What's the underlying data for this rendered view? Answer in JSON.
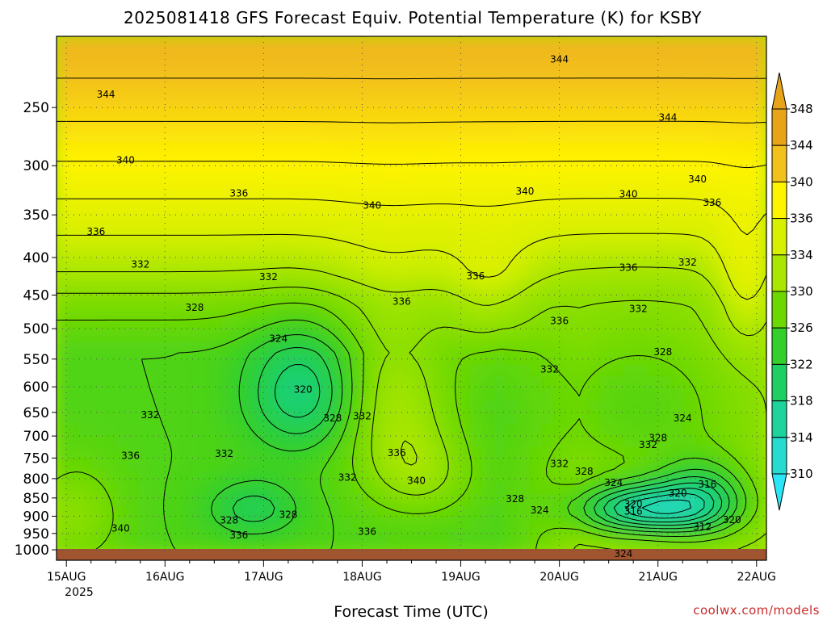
{
  "chart_data": {
    "type": "heatmap",
    "subtype": "time-height filled contour",
    "title": "2025081418 GFS Forecast Equiv. Potential Temperature (K) for KSBY",
    "xlabel": "Forecast Time (UTC)",
    "ylabel": "",
    "x_ticks": [
      "15AUG",
      "16AUG",
      "17AUG",
      "18AUG",
      "19AUG",
      "20AUG",
      "21AUG",
      "22AUG"
    ],
    "x_year_label": "2025",
    "y_ticks": [
      250,
      300,
      350,
      400,
      450,
      500,
      550,
      600,
      650,
      700,
      750,
      800,
      850,
      900,
      950,
      1000
    ],
    "y_axis": "pressure (hPa), inverted",
    "y_range": [
      1010,
      200
    ],
    "x_range_days": [
      -0.1,
      7.1
    ],
    "grid": true,
    "colorbar": {
      "ticks": [
        348,
        344,
        340,
        336,
        334,
        330,
        326,
        322,
        318,
        314,
        310
      ],
      "colors": [
        "#e8a418",
        "#f3c11c",
        "#fff400",
        "#d7f000",
        "#a9e600",
        "#6cd800",
        "#33cf2b",
        "#1fcf63",
        "#1ed39c",
        "#25dccf",
        "#2ce5f6"
      ],
      "extend": "both"
    },
    "ground_color": "#a05530",
    "contour_labels": [
      {
        "text": "344",
        "t": 0.4,
        "p": 240
      },
      {
        "text": "344",
        "t": 5.0,
        "p": 215
      },
      {
        "text": "344",
        "t": 6.1,
        "p": 258
      },
      {
        "text": "340",
        "t": 0.6,
        "p": 295
      },
      {
        "text": "340",
        "t": 3.1,
        "p": 340
      },
      {
        "text": "340",
        "t": 4.65,
        "p": 325
      },
      {
        "text": "340",
        "t": 5.7,
        "p": 328
      },
      {
        "text": "340",
        "t": 6.4,
        "p": 313
      },
      {
        "text": "340",
        "t": 0.55,
        "p": 935
      },
      {
        "text": "340",
        "t": 3.55,
        "p": 805
      },
      {
        "text": "336",
        "t": 1.75,
        "p": 327
      },
      {
        "text": "336",
        "t": 0.3,
        "p": 369
      },
      {
        "text": "336",
        "t": 4.15,
        "p": 424
      },
      {
        "text": "336",
        "t": 3.4,
        "p": 459
      },
      {
        "text": "336",
        "t": 5.0,
        "p": 488
      },
      {
        "text": "336",
        "t": 5.7,
        "p": 413
      },
      {
        "text": "336",
        "t": 6.55,
        "p": 337
      },
      {
        "text": "336",
        "t": 0.65,
        "p": 745
      },
      {
        "text": "336",
        "t": 3.35,
        "p": 738
      },
      {
        "text": "336",
        "t": 1.75,
        "p": 955
      },
      {
        "text": "336",
        "t": 3.05,
        "p": 945
      },
      {
        "text": "332",
        "t": 0.75,
        "p": 409
      },
      {
        "text": "332",
        "t": 2.05,
        "p": 425
      },
      {
        "text": "332",
        "t": 4.9,
        "p": 568
      },
      {
        "text": "332",
        "t": 5.8,
        "p": 470
      },
      {
        "text": "332",
        "t": 6.3,
        "p": 406
      },
      {
        "text": "332",
        "t": 0.85,
        "p": 655
      },
      {
        "text": "332",
        "t": 1.6,
        "p": 740
      },
      {
        "text": "332",
        "t": 3.0,
        "p": 658
      },
      {
        "text": "332",
        "t": 2.85,
        "p": 797
      },
      {
        "text": "332",
        "t": 5.0,
        "p": 764
      },
      {
        "text": "332",
        "t": 5.9,
        "p": 720
      },
      {
        "text": "328",
        "t": 1.3,
        "p": 468
      },
      {
        "text": "328",
        "t": 6.05,
        "p": 538
      },
      {
        "text": "328",
        "t": 2.7,
        "p": 662
      },
      {
        "text": "328",
        "t": 5.25,
        "p": 782
      },
      {
        "text": "328",
        "t": 4.55,
        "p": 853
      },
      {
        "text": "328",
        "t": 6.0,
        "p": 704
      },
      {
        "text": "328",
        "t": 1.65,
        "p": 912
      },
      {
        "text": "328",
        "t": 2.25,
        "p": 896
      },
      {
        "text": "324",
        "t": 2.15,
        "p": 516
      },
      {
        "text": "324",
        "t": 4.8,
        "p": 883
      },
      {
        "text": "324",
        "t": 5.55,
        "p": 810
      },
      {
        "text": "324",
        "t": 6.25,
        "p": 662
      },
      {
        "text": "324",
        "t": 5.65,
        "p": 1015
      },
      {
        "text": "320",
        "t": 2.4,
        "p": 605
      },
      {
        "text": "320",
        "t": 5.75,
        "p": 867
      },
      {
        "text": "320",
        "t": 6.2,
        "p": 838
      },
      {
        "text": "320",
        "t": 6.75,
        "p": 910
      },
      {
        "text": "316",
        "t": 5.75,
        "p": 887
      },
      {
        "text": "316",
        "t": 6.5,
        "p": 815
      },
      {
        "text": "312",
        "t": 6.45,
        "p": 930
      }
    ]
  },
  "credit": "coolwx.com/models"
}
